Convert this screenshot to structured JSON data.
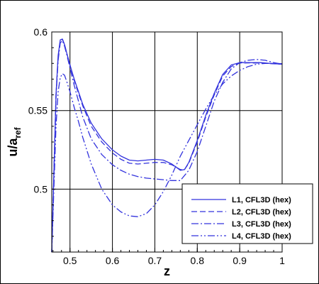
{
  "chart_data": {
    "type": "line",
    "title": "",
    "xlabel": "z",
    "ylabel": "u/a",
    "ylabel_sub": "ref",
    "xlim": [
      0.457,
      1.0
    ],
    "ylim": [
      0.46,
      0.6
    ],
    "xticks": [
      0.5,
      0.6,
      0.7,
      0.8,
      0.9,
      1
    ],
    "xtick_labels": [
      "0.5",
      "0.6",
      "0.7",
      "0.8",
      "0.9",
      "1"
    ],
    "yticks": [
      0.5,
      0.55,
      0.6
    ],
    "ytick_labels": [
      "0.5",
      "0.55",
      "0.6"
    ],
    "grid": true,
    "legend_position": "bottom-right",
    "line_color": "#3333dd",
    "series": [
      {
        "name": "L1, CFL3D (hex)",
        "style": "solid",
        "x": [
          0.457,
          0.462,
          0.467,
          0.472,
          0.477,
          0.482,
          0.487,
          0.493,
          0.5,
          0.51,
          0.52,
          0.53,
          0.55,
          0.575,
          0.6,
          0.62,
          0.64,
          0.66,
          0.68,
          0.7,
          0.72,
          0.74,
          0.76,
          0.77,
          0.78,
          0.8,
          0.82,
          0.84,
          0.86,
          0.88,
          0.9,
          0.92,
          0.95,
          0.98,
          1.0
        ],
        "y": [
          0.46,
          0.51,
          0.56,
          0.585,
          0.595,
          0.5955,
          0.592,
          0.586,
          0.579,
          0.57,
          0.562,
          0.554,
          0.542,
          0.532,
          0.525,
          0.521,
          0.5185,
          0.518,
          0.5185,
          0.519,
          0.5185,
          0.516,
          0.512,
          0.5125,
          0.517,
          0.531,
          0.547,
          0.561,
          0.573,
          0.579,
          0.5805,
          0.5805,
          0.5805,
          0.5798,
          0.5795
        ]
      },
      {
        "name": "L2, CFL3D (hex)",
        "style": "dashed",
        "x": [
          0.457,
          0.462,
          0.467,
          0.472,
          0.477,
          0.482,
          0.487,
          0.493,
          0.5,
          0.51,
          0.52,
          0.53,
          0.55,
          0.575,
          0.6,
          0.62,
          0.64,
          0.66,
          0.68,
          0.7,
          0.72,
          0.74,
          0.76,
          0.77,
          0.78,
          0.8,
          0.82,
          0.84,
          0.86,
          0.88,
          0.9,
          0.92,
          0.95,
          0.98,
          1.0
        ],
        "y": [
          0.46,
          0.51,
          0.56,
          0.584,
          0.5945,
          0.5955,
          0.592,
          0.586,
          0.579,
          0.569,
          0.561,
          0.553,
          0.54,
          0.53,
          0.523,
          0.519,
          0.5165,
          0.516,
          0.5165,
          0.517,
          0.517,
          0.5155,
          0.5125,
          0.5125,
          0.5165,
          0.53,
          0.546,
          0.56,
          0.572,
          0.578,
          0.5802,
          0.5803,
          0.5802,
          0.5797,
          0.5795
        ]
      },
      {
        "name": "L3, CFL3D (hex)",
        "style": "dashdot",
        "x": [
          0.457,
          0.462,
          0.467,
          0.472,
          0.477,
          0.482,
          0.487,
          0.493,
          0.5,
          0.51,
          0.52,
          0.53,
          0.55,
          0.575,
          0.6,
          0.62,
          0.64,
          0.66,
          0.68,
          0.7,
          0.72,
          0.74,
          0.76,
          0.78,
          0.8,
          0.82,
          0.84,
          0.86,
          0.88,
          0.9,
          0.92,
          0.94,
          0.96,
          0.98,
          1.0
        ],
        "y": [
          0.46,
          0.51,
          0.558,
          0.582,
          0.593,
          0.5945,
          0.591,
          0.585,
          0.577,
          0.566,
          0.556,
          0.546,
          0.532,
          0.522,
          0.5155,
          0.512,
          0.5095,
          0.508,
          0.507,
          0.5065,
          0.506,
          0.5055,
          0.5055,
          0.512,
          0.524,
          0.54,
          0.556,
          0.568,
          0.5765,
          0.5805,
          0.582,
          0.5825,
          0.582,
          0.5805,
          0.5795
        ]
      },
      {
        "name": "L4, CFL3D (hex)",
        "style": "dashdotdot",
        "x": [
          0.457,
          0.462,
          0.467,
          0.472,
          0.477,
          0.482,
          0.487,
          0.493,
          0.5,
          0.51,
          0.52,
          0.53,
          0.55,
          0.575,
          0.6,
          0.62,
          0.64,
          0.66,
          0.68,
          0.7,
          0.72,
          0.74,
          0.76,
          0.78,
          0.8,
          0.82,
          0.84,
          0.86,
          0.88,
          0.9,
          0.92,
          0.94,
          0.96,
          0.98,
          1.0
        ],
        "y": [
          0.46,
          0.5,
          0.54,
          0.562,
          0.571,
          0.5735,
          0.5725,
          0.568,
          0.562,
          0.552,
          0.543,
          0.533,
          0.516,
          0.5,
          0.49,
          0.4855,
          0.483,
          0.4825,
          0.4845,
          0.49,
          0.4985,
          0.509,
          0.521,
          0.531,
          0.541,
          0.551,
          0.56,
          0.567,
          0.572,
          0.5755,
          0.578,
          0.5795,
          0.58,
          0.58,
          0.5798
        ]
      }
    ]
  }
}
